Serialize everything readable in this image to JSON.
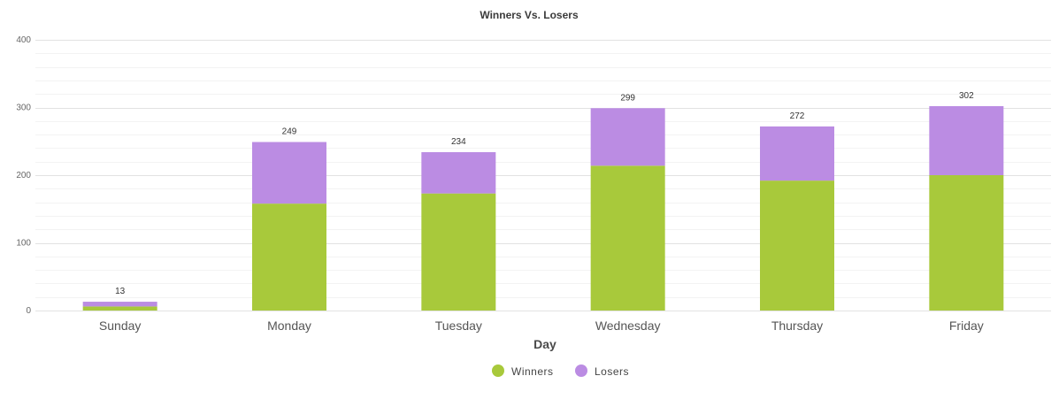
{
  "chart_data": {
    "type": "bar",
    "stacked": true,
    "title": "Winners Vs. Losers",
    "xlabel": "Day",
    "ylabel": "",
    "ylim": [
      0,
      400
    ],
    "y_ticks": [
      0,
      100,
      200,
      300,
      400
    ],
    "grid": true,
    "legend_position": "bottom",
    "categories": [
      "Sunday",
      "Monday",
      "Tuesday",
      "Wednesday",
      "Thursday",
      "Friday"
    ],
    "series": [
      {
        "name": "Winners",
        "color": "#A8C93B",
        "values": [
          6,
          158,
          173,
          214,
          192,
          200
        ]
      },
      {
        "name": "Losers",
        "color": "#BB8CE3",
        "values": [
          7,
          91,
          61,
          85,
          80,
          102
        ]
      }
    ],
    "totals": [
      13,
      249,
      234,
      299,
      272,
      302
    ]
  }
}
